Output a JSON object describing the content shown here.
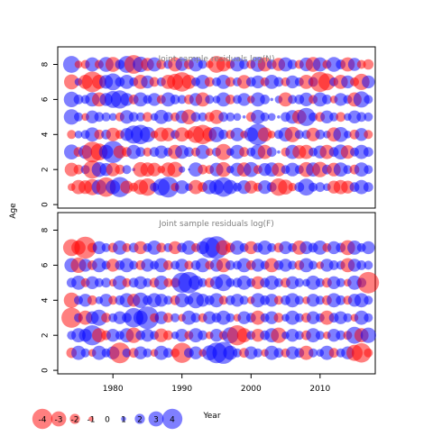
{
  "chart_data": [
    {
      "type": "scatter",
      "subtype": "bubble",
      "title": "Joint sample residuals log(N)",
      "xlabel": "",
      "ylabel": "Age",
      "xlim": [
        1972,
        2018
      ],
      "ylim": [
        -0.2,
        9.0
      ],
      "x_ticks": [
        1980,
        1990,
        2000,
        2010
      ],
      "y_ticks": [
        0,
        2,
        4,
        6,
        8
      ],
      "x_tick_labels_shown": false,
      "ages": [
        1,
        2,
        3,
        4,
        5,
        6,
        7,
        8
      ],
      "years": [
        1974,
        1975,
        1976,
        1977,
        1978,
        1979,
        1980,
        1981,
        1982,
        1983,
        1984,
        1985,
        1986,
        1987,
        1988,
        1989,
        1990,
        1991,
        1992,
        1993,
        1994,
        1995,
        1996,
        1997,
        1998,
        1999,
        2000,
        2001,
        2002,
        2003,
        2004,
        2005,
        2006,
        2007,
        2008,
        2009,
        2010,
        2011,
        2012,
        2013,
        2014,
        2015,
        2016,
        2017
      ],
      "residuals": [
        [
          -1.2,
          -2.2,
          -2.1,
          -2.5,
          2.3,
          -3.0,
          2.2,
          3.1,
          -2.0,
          -1.4,
          -2.3,
          -2.7,
          1.4,
          2.6,
          3.2,
          -1.3,
          2.1,
          1.2,
          -2.2,
          -1.5,
          2.2,
          2.3,
          3.0,
          2.2,
          1.4,
          2.1,
          -2.0,
          -1.4,
          2.1,
          1.5,
          -2.7,
          -2.3,
          -1.3,
          1.5,
          2.6,
          1.4,
          1.5,
          1.2,
          -2.0,
          -2.2,
          -2.0,
          1.5,
          2.2,
          1.5
        ],
        [
          -2.1,
          -1.5,
          1.4,
          -2.8,
          2.3,
          2.0,
          -2.1,
          -1.5,
          1.4,
          0.5,
          -2.3,
          -2.2,
          -2.1,
          -1.2,
          -2.2,
          -2.4,
          1.0,
          0.3,
          2.2,
          -1.5,
          -1.4,
          2.1,
          -2.3,
          1.2,
          2.1,
          -2.2,
          2.3,
          -1.4,
          2.0,
          2.2,
          -2.1,
          1.4,
          2.1,
          1.4,
          -2.3,
          2.2,
          -2.4,
          1.5,
          -2.1,
          2.2,
          1.4,
          -1.5,
          2.2,
          1.4
        ],
        [
          2.3,
          -1.5,
          2.1,
          -3.2,
          -2.6,
          2.2,
          3.4,
          -2.0,
          -1.5,
          2.2,
          1.5,
          -1.4,
          1.5,
          2.0,
          1.4,
          -2.2,
          2.1,
          1.5,
          -1.4,
          2.2,
          -1.2,
          1.4,
          -2.5,
          1.2,
          2.2,
          -1.5,
          1.4,
          2.3,
          -2.2,
          1.5,
          0.5,
          -1.4,
          2.2,
          -2.1,
          -2.2,
          1.4,
          2.0,
          -2.2,
          1.5,
          2.3,
          -2.1,
          1.4,
          2.2,
          1.5
        ],
        [
          -1.4,
          1.2,
          1.4,
          2.2,
          -1.5,
          1.5,
          -2.1,
          -1.4,
          2.0,
          2.8,
          3.0,
          2.4,
          -1.2,
          -2.2,
          -2.1,
          1.4,
          -2.2,
          -1.4,
          -2.6,
          -3.0,
          -2.2,
          2.4,
          1.5,
          -1.4,
          2.1,
          -1.2,
          2.2,
          3.3,
          -2.2,
          -1.2,
          1.4,
          2.2,
          -2.4,
          1.4,
          1.4,
          -2.1,
          1.5,
          1.2,
          -2.2,
          2.3,
          1.2,
          -1.5,
          2.0,
          -1.4
        ],
        [
          2.4,
          1.4,
          -1.2,
          2.0,
          1.5,
          1.4,
          1.2,
          -1.4,
          2.1,
          1.5,
          1.4,
          -1.5,
          1.2,
          2.2,
          1.5,
          -1.4,
          2.0,
          -2.3,
          1.5,
          1.4,
          -1.5,
          -2.2,
          1.5,
          1.4,
          1.2,
          0.5,
          -1.5,
          2.2,
          1.4,
          1.2,
          0.5,
          1.5,
          2.1,
          -2.2,
          2.8,
          1.4,
          -1.5,
          2.0,
          1.4,
          -1.5,
          1.2,
          2.0,
          1.5,
          1.4
        ],
        [
          2.4,
          1.5,
          1.4,
          2.2,
          -2.2,
          2.0,
          2.6,
          2.8,
          2.0,
          -1.5,
          2.2,
          1.4,
          2.0,
          -1.4,
          2.2,
          1.5,
          1.4,
          -1.5,
          2.0,
          -2.2,
          1.4,
          1.2,
          2.2,
          -1.5,
          1.4,
          2.0,
          -1.2,
          2.2,
          1.5,
          0.5,
          1.2,
          -2.2,
          1.4,
          1.5,
          2.1,
          -1.4,
          2.2,
          1.5,
          -1.2,
          2.0,
          1.4,
          -2.2,
          2.5,
          1.4
        ],
        [
          -2.3,
          1.2,
          -2.2,
          -3.2,
          -2.2,
          2.1,
          2.6,
          1.5,
          2.2,
          1.4,
          -2.2,
          2.0,
          -1.5,
          1.4,
          -2.2,
          -2.5,
          -3.0,
          -2.2,
          1.4,
          2.2,
          -1.5,
          1.4,
          2.2,
          -1.5,
          1.4,
          -2.1,
          1.5,
          2.0,
          -1.4,
          2.2,
          1.5,
          -1.4,
          2.0,
          1.4,
          -2.2,
          1.5,
          -3.1,
          -2.6,
          1.4,
          -2.2,
          2.0,
          -1.4,
          -2.5,
          2.0
        ],
        [
          2.6,
          -1.2,
          -1.4,
          2.2,
          -1.4,
          2.3,
          -2.3,
          1.5,
          2.6,
          -2.9,
          2.4,
          -2.0,
          2.2,
          -1.5,
          1.4,
          -2.2,
          2.0,
          -1.5,
          2.2,
          1.4,
          -1.2,
          -2.6,
          -2.2,
          -1.4,
          2.2,
          1.5,
          -1.4,
          2.3,
          -2.2,
          1.5,
          -2.0,
          2.2,
          1.5,
          -1.4,
          2.1,
          -2.3,
          2.2,
          -1.4,
          2.3,
          1.5,
          -2.2,
          2.0,
          -1.4,
          -1.6
        ]
      ]
    },
    {
      "type": "scatter",
      "subtype": "bubble",
      "title": "Joint sample residuals log(F)",
      "xlabel": "Year",
      "ylabel": "",
      "xlim": [
        1972,
        2018
      ],
      "ylim": [
        -0.2,
        9.0
      ],
      "x_ticks": [
        1980,
        1990,
        2000,
        2010
      ],
      "y_ticks": [
        0,
        2,
        4,
        6,
        8
      ],
      "ages": [
        1,
        2,
        3,
        4,
        5,
        6,
        7
      ],
      "years": [
        1974,
        1975,
        1976,
        1977,
        1978,
        1979,
        1980,
        1981,
        1982,
        1983,
        1984,
        1985,
        1986,
        1987,
        1988,
        1989,
        1990,
        1991,
        1992,
        1993,
        1994,
        1995,
        1996,
        1997,
        1998,
        1999,
        2000,
        2001,
        2002,
        2003,
        2004,
        2005,
        2006,
        2007,
        2008,
        2009,
        2010,
        2011,
        2012,
        2013,
        2014,
        2015,
        2016,
        2017
      ],
      "residuals": [
        [
          -1.6,
          2.2,
          1.4,
          -1.2,
          2.2,
          1.4,
          2.0,
          -3.2,
          1.4,
          -1.5,
          2.0,
          1.4,
          -1.2,
          2.2,
          1.5,
          -1.4,
          -3.1,
          1.5,
          2.0,
          -1.2,
          2.3,
          3.2,
          3.4,
          2.2,
          1.4,
          -1.5,
          2.0,
          1.4,
          -1.2,
          2.2,
          1.5,
          -1.4,
          2.0,
          1.5,
          -2.2,
          1.4,
          1.2,
          2.2,
          -1.5,
          1.4,
          2.0,
          -2.5,
          -3.0,
          -1.4
        ],
        [
          1.4,
          2.2,
          2.0,
          3.1,
          -2.2,
          -1.5,
          2.0,
          1.4,
          2.2,
          -2.4,
          1.5,
          2.0,
          1.4,
          -2.1,
          -1.5,
          1.2,
          2.0,
          -1.4,
          2.2,
          1.5,
          -1.2,
          2.0,
          -1.4,
          2.5,
          -3.1,
          -2.2,
          1.4,
          -2.0,
          1.5,
          2.2,
          -2.4,
          1.2,
          2.0,
          1.4,
          -1.5,
          2.2,
          1.4,
          -1.2,
          2.0,
          1.5,
          -1.4,
          2.6,
          -2.2,
          2.4
        ],
        [
          -3.1,
          1.4,
          -2.2,
          2.0,
          2.5,
          -1.5,
          1.4,
          2.0,
          1.5,
          3.0,
          2.2,
          3.5,
          -1.4,
          2.0,
          -1.5,
          1.4,
          -1.2,
          2.2,
          1.5,
          -1.4,
          2.0,
          1.5,
          2.2,
          1.4,
          -1.2,
          2.0,
          1.5,
          -2.2,
          1.4,
          2.0,
          -1.5,
          1.2,
          2.2,
          1.4,
          -1.5,
          2.0,
          1.4,
          -2.2,
          1.5,
          2.0,
          1.4,
          -1.2,
          2.2,
          1.4
        ],
        [
          -2.4,
          1.4,
          2.0,
          -1.5,
          1.2,
          2.0,
          -1.4,
          1.5,
          2.2,
          -2.0,
          2.4,
          1.5,
          2.2,
          2.0,
          1.4,
          -1.5,
          2.2,
          1.4,
          2.5,
          2.0,
          1.5,
          2.2,
          -1.4,
          1.5,
          2.0,
          1.4,
          -1.2,
          2.2,
          1.5,
          2.0,
          -1.4,
          1.5,
          2.2,
          1.4,
          -1.2,
          2.0,
          1.4,
          -1.5,
          2.2,
          1.5,
          -1.4,
          2.0,
          2.2,
          1.4
        ],
        [
          1.5,
          2.2,
          -1.4,
          2.0,
          1.4,
          1.5,
          -1.2,
          2.2,
          -1.4,
          1.5,
          2.0,
          1.4,
          -1.5,
          2.2,
          -1.4,
          -1.5,
          3.1,
          3.3,
          2.2,
          1.4,
          -1.5,
          2.0,
          2.6,
          1.4,
          1.5,
          2.2,
          1.4,
          -2.0,
          1.5,
          2.2,
          1.4,
          -1.5,
          2.0,
          1.4,
          1.2,
          2.2,
          1.4,
          -1.5,
          2.0,
          1.4,
          -1.2,
          2.2,
          1.5,
          -3.3
        ],
        [
          2.2,
          -2.4,
          2.0,
          -1.5,
          2.2,
          1.4,
          -2.0,
          1.5,
          2.2,
          1.4,
          -1.5,
          2.0,
          1.4,
          2.2,
          -1.5,
          1.4,
          2.0,
          -1.4,
          1.5,
          2.2,
          -1.4,
          2.0,
          -2.2,
          1.5,
          1.4,
          2.2,
          -1.5,
          2.0,
          1.4,
          -2.2,
          1.5,
          2.0,
          1.4,
          -1.5,
          2.2,
          1.4,
          -1.2,
          2.0,
          1.5,
          1.4,
          -2.2,
          2.0,
          1.5,
          1.4
        ],
        [
          -2.6,
          -2.2,
          -3.4,
          -1.5,
          2.0,
          1.4,
          -1.5,
          2.2,
          -1.4,
          1.5,
          -2.0,
          1.4,
          2.2,
          -1.5,
          1.4,
          -2.0,
          1.5,
          2.2,
          -1.4,
          2.0,
          3.2,
          3.5,
          -2.3,
          -1.5,
          2.2,
          1.4,
          -2.0,
          1.5,
          2.2,
          1.4,
          -1.5,
          2.0,
          1.4,
          -2.2,
          2.0,
          1.5,
          2.2,
          -1.4,
          2.0,
          1.5,
          -2.3,
          2.2,
          1.4,
          2.0
        ]
      ]
    }
  ],
  "legend": {
    "placement": "bottom-left",
    "values": [
      -4,
      -3,
      -2,
      -1,
      0,
      1,
      2,
      3,
      4
    ],
    "labels": [
      "-4",
      "-3",
      "-2",
      "-1",
      "0",
      "1",
      "2",
      "3",
      "4"
    ]
  },
  "colors": {
    "negative": "#ff0000",
    "positive": "#0000ff",
    "title": "#808080",
    "axis": "#000000"
  }
}
